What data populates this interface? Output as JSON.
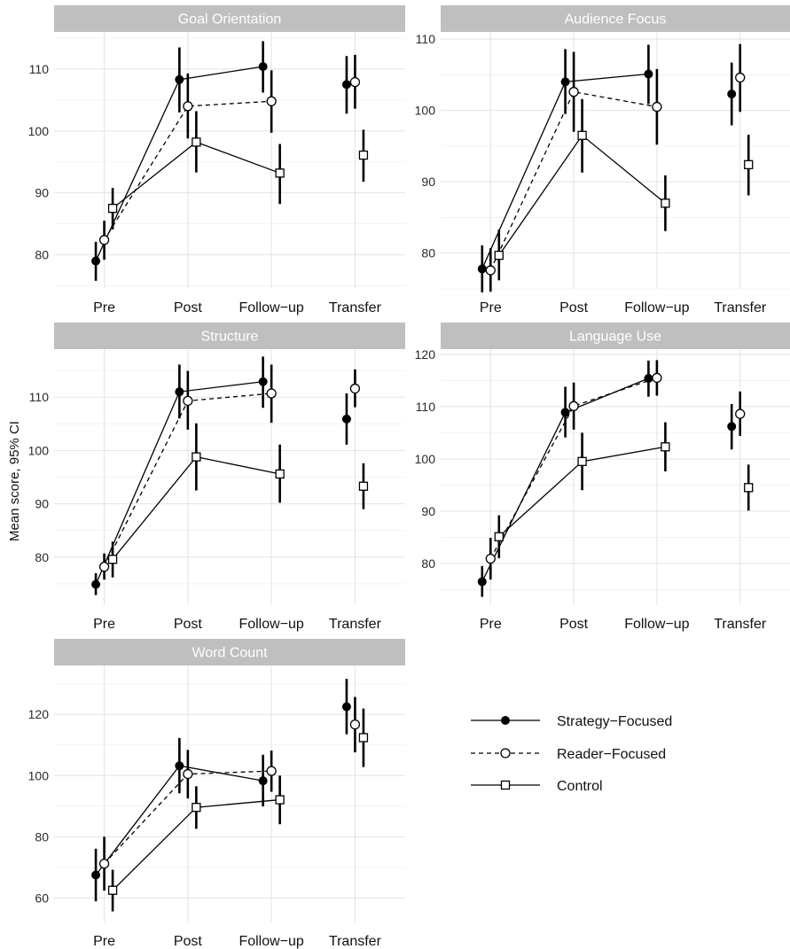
{
  "chart_data": {
    "type": "line",
    "ylabel": "Mean score, 95% CI",
    "xlabel": "",
    "categories": [
      "Pre",
      "Post",
      "Follow−up",
      "Transfer"
    ],
    "grid": true,
    "legend_position": "bottom-right",
    "legend": [
      {
        "name": "Strategy−Focused",
        "marker": "filled-circle",
        "line": "solid",
        "color": "#000000"
      },
      {
        "name": "Reader−Focused",
        "marker": "open-circle",
        "line": "dashed",
        "color": "#000000"
      },
      {
        "name": "Control",
        "marker": "open-square",
        "line": "solid",
        "color": "#000000"
      }
    ],
    "panels": [
      {
        "title": "Goal Orientation",
        "ylim": [
          74.5,
          116
        ],
        "yticks": [
          80,
          90,
          100,
          110
        ],
        "series": [
          {
            "name": "Strategy−Focused",
            "values": [
              79.0,
              108.3,
              110.4,
              107.5
            ],
            "lower": [
              75.8,
              103.0,
              106.2,
              102.8
            ],
            "upper": [
              82.1,
              113.5,
              114.5,
              112.1
            ]
          },
          {
            "name": "Reader−Focused",
            "values": [
              82.4,
              104.0,
              104.8,
              107.9
            ],
            "lower": [
              79.2,
              98.8,
              99.7,
              103.6
            ],
            "upper": [
              85.5,
              109.3,
              109.8,
              112.3
            ]
          },
          {
            "name": "Control",
            "values": [
              87.5,
              98.2,
              93.2,
              96.1
            ],
            "lower": [
              84.1,
              93.3,
              88.2,
              91.8
            ],
            "upper": [
              90.8,
              103.2,
              97.9,
              100.2
            ]
          }
        ]
      },
      {
        "title": "Audience Focus",
        "ylim": [
          75,
          111
        ],
        "yticks": [
          80,
          90,
          100,
          110
        ],
        "series": [
          {
            "name": "Strategy−Focused",
            "values": [
              77.8,
              104.0,
              105.1,
              102.3
            ],
            "lower": [
              74.5,
              99.5,
              100.9,
              97.9
            ],
            "upper": [
              81.1,
              108.6,
              109.2,
              106.7
            ]
          },
          {
            "name": "Reader−Focused",
            "values": [
              77.6,
              102.6,
              100.5,
              104.6
            ],
            "lower": [
              74.6,
              97.0,
              95.2,
              99.8
            ],
            "upper": [
              80.7,
              108.2,
              105.8,
              109.3
            ]
          },
          {
            "name": "Control",
            "values": [
              79.7,
              96.5,
              87.0,
              92.4
            ],
            "lower": [
              76.2,
              91.3,
              83.1,
              88.1
            ],
            "upper": [
              83.3,
              101.6,
              90.9,
              96.6
            ]
          }
        ]
      },
      {
        "title": "Structure",
        "ylim": [
          71,
          119
        ],
        "yticks": [
          80,
          90,
          100,
          110
        ],
        "series": [
          {
            "name": "Strategy−Focused",
            "values": [
              74.9,
              111.0,
              112.9,
              105.9
            ],
            "lower": [
              72.9,
              106.0,
              108.0,
              101.1
            ],
            "upper": [
              77.0,
              116.1,
              117.6,
              110.7
            ]
          },
          {
            "name": "Reader−Focused",
            "values": [
              78.2,
              109.3,
              110.7,
              111.6
            ],
            "lower": [
              75.8,
              103.9,
              105.2,
              108.1
            ],
            "upper": [
              80.7,
              114.9,
              116.1,
              115.2
            ]
          },
          {
            "name": "Control",
            "values": [
              79.6,
              98.8,
              95.6,
              93.3
            ],
            "lower": [
              76.2,
              92.5,
              90.2,
              89.0
            ],
            "upper": [
              82.9,
              105.1,
              101.1,
              97.6
            ]
          }
        ]
      },
      {
        "title": "Language Use",
        "ylim": [
          72,
          121
        ],
        "yticks": [
          80,
          90,
          100,
          110,
          120
        ],
        "series": [
          {
            "name": "Strategy−Focused",
            "values": [
              76.5,
              108.9,
              115.4,
              106.2
            ],
            "lower": [
              73.6,
              104.1,
              111.9,
              101.8
            ],
            "upper": [
              79.5,
              113.8,
              118.8,
              110.5
            ]
          },
          {
            "name": "Reader−Focused",
            "values": [
              80.9,
              110.1,
              115.5,
              108.6
            ],
            "lower": [
              76.9,
              105.6,
              112.1,
              104.4
            ],
            "upper": [
              84.9,
              114.6,
              118.9,
              112.9
            ]
          },
          {
            "name": "Control",
            "values": [
              85.1,
              99.5,
              102.3,
              94.5
            ],
            "lower": [
              81.0,
              94.0,
              97.6,
              90.1
            ],
            "upper": [
              89.2,
              105.0,
              107.0,
              98.9
            ]
          }
        ]
      },
      {
        "title": "Word Count",
        "ylim": [
          52,
          136
        ],
        "yticks": [
          60,
          80,
          100,
          120
        ],
        "series": [
          {
            "name": "Strategy−Focused",
            "values": [
              67.5,
              103.2,
              98.3,
              122.5
            ],
            "lower": [
              58.9,
              94.2,
              89.9,
              113.5
            ],
            "upper": [
              76.1,
              112.3,
              106.8,
              131.6
            ]
          },
          {
            "name": "Reader−Focused",
            "values": [
              71.2,
              100.5,
              101.5,
              116.7
            ],
            "lower": [
              62.4,
              92.5,
              94.7,
              107.6
            ],
            "upper": [
              80.0,
              108.4,
              108.2,
              125.7
            ]
          },
          {
            "name": "Control",
            "values": [
              62.5,
              89.6,
              92.1,
              112.4
            ],
            "lower": [
              55.6,
              82.6,
              84.1,
              102.8
            ],
            "upper": [
              69.2,
              96.5,
              100.0,
              121.9
            ]
          }
        ]
      }
    ]
  }
}
